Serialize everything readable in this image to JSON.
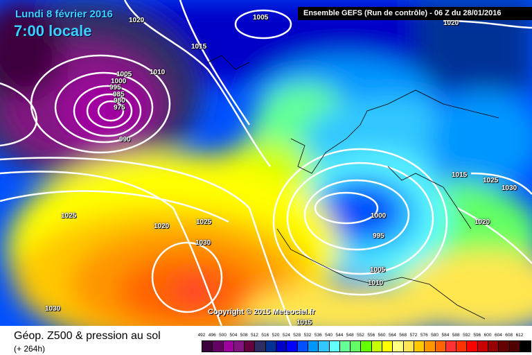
{
  "header": {
    "date": "Lundi 8 février 2016",
    "time": "7:00 locale",
    "run": "Ensemble GEFS  (Run de contrôle)  -  06 Z du 28/01/2016"
  },
  "copyright": "Copyright © 2015 Meteociel.fr",
  "isobar_labels": [
    "1020",
    "1005",
    "1015",
    "1020",
    "1005",
    "1010",
    "1000",
    "995",
    "985",
    "980",
    "975",
    "990",
    "1025",
    "1020",
    "1025",
    "1030",
    "1030",
    "1015",
    "1025",
    "1030",
    "1000",
    "995",
    "1020",
    "1005",
    "1010",
    "1015"
  ],
  "footer": {
    "title": "Géop. Z500 & pression au sol",
    "lead": "(+ 264h)"
  },
  "scale": {
    "labels": [
      "492",
      "496",
      "500",
      "504",
      "508",
      "512",
      "516",
      "520",
      "524",
      "528",
      "532",
      "536",
      "540",
      "544",
      "548",
      "552",
      "556",
      "560",
      "564",
      "568",
      "572",
      "576",
      "580",
      "584",
      "588",
      "592",
      "596",
      "600",
      "604",
      "608",
      "612"
    ],
    "colors": [
      "#3c003c",
      "#640064",
      "#a000a0",
      "#821482",
      "#640040",
      "#2d2d64",
      "#003296",
      "#0000c8",
      "#0000ff",
      "#0050ff",
      "#0096ff",
      "#32c8ff",
      "#64ffff",
      "#64ff96",
      "#64ff64",
      "#64ff00",
      "#c8ff00",
      "#ffff00",
      "#ffff80",
      "#ffe650",
      "#ffc800",
      "#ff9600",
      "#ff6400",
      "#ff3232",
      "#ff3200",
      "#ff0000",
      "#c80000",
      "#960000",
      "#640000",
      "#500000",
      "#000000"
    ]
  }
}
